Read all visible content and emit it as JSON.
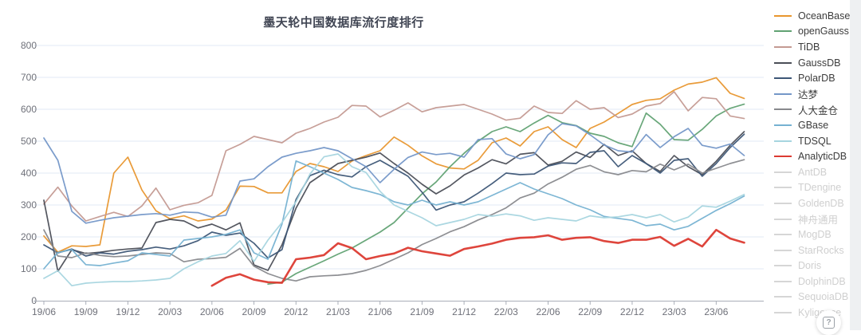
{
  "title": "墨天轮中国数据库流行度排行",
  "help_button": {
    "label": "?"
  },
  "colors": {
    "grid": "#E2EAF4",
    "axis": "#A9AEB8",
    "tick_label": "#6E7079",
    "inactive_legend": "#D6D6D6"
  },
  "chart_data": {
    "type": "line",
    "title": "墨天轮中国数据库流行度排行",
    "ylim": [
      0,
      800
    ],
    "y_ticks": [
      0,
      100,
      200,
      300,
      400,
      500,
      600,
      700,
      800
    ],
    "x_tick_labels": [
      "19/06",
      "19/09",
      "19/12",
      "20/03",
      "20/06",
      "20/09",
      "20/12",
      "21/03",
      "21/06",
      "21/09",
      "21/12",
      "22/03",
      "22/06",
      "22/09",
      "22/12",
      "23/03",
      "23/06"
    ],
    "x_tick_interval": 3,
    "x_start_month": "2019/06",
    "x_end_month": "2023/08",
    "grid": true,
    "legend_position": "right",
    "series": [
      {
        "name": "OceanBase",
        "color": "#E8962E",
        "width": 1.7,
        "values": [
          203,
          152,
          172,
          170,
          175,
          400,
          450,
          347,
          282,
          257,
          266,
          250,
          256,
          284,
          359,
          358,
          338,
          338,
          405,
          430,
          420,
          405,
          438,
          455,
          470,
          513,
          487,
          454,
          429,
          416,
          413,
          440,
          495,
          510,
          485,
          530,
          545,
          505,
          480,
          540,
          560,
          587,
          615,
          628,
          633,
          660,
          679,
          685,
          699,
          650,
          634
        ]
      },
      {
        "name": "openGauss",
        "color": "#61A273",
        "width": 1.7,
        "values": [
          null,
          null,
          null,
          null,
          null,
          null,
          null,
          null,
          null,
          null,
          null,
          null,
          null,
          null,
          null,
          null,
          52,
          58,
          85,
          105,
          125,
          146,
          165,
          190,
          215,
          245,
          290,
          335,
          372,
          420,
          462,
          500,
          530,
          545,
          530,
          557,
          581,
          558,
          549,
          525,
          515,
          495,
          483,
          588,
          553,
          505,
          503,
          537,
          579,
          603,
          616
        ]
      },
      {
        "name": "TiDB",
        "color": "#C49A92",
        "width": 1.7,
        "values": [
          303,
          356,
          297,
          250,
          264,
          277,
          264,
          297,
          353,
          285,
          299,
          307,
          330,
          470,
          490,
          515,
          505,
          495,
          525,
          540,
          560,
          575,
          612,
          610,
          576,
          597,
          620,
          592,
          605,
          610,
          615,
          600,
          585,
          566,
          572,
          610,
          590,
          587,
          627,
          600,
          605,
          574,
          585,
          610,
          618,
          655,
          595,
          637,
          633,
          579,
          571
        ]
      },
      {
        "name": "GaussDB",
        "color": "#4B4E57",
        "width": 1.7,
        "values": [
          315,
          92,
          160,
          148,
          152,
          158,
          162,
          165,
          245,
          255,
          250,
          228,
          240,
          222,
          244,
          112,
          95,
          175,
          290,
          370,
          400,
          430,
          440,
          450,
          463,
          430,
          400,
          365,
          335,
          360,
          394,
          416,
          442,
          429,
          459,
          464,
          425,
          437,
          466,
          449,
          490,
          455,
          470,
          430,
          405,
          455,
          420,
          395,
          437,
          487,
          530
        ]
      },
      {
        "name": "PolarDB",
        "color": "#3D5676",
        "width": 1.7,
        "values": [
          175,
          150,
          162,
          140,
          150,
          146,
          155,
          160,
          168,
          162,
          172,
          188,
          215,
          205,
          212,
          180,
          134,
          160,
          317,
          392,
          409,
          395,
          388,
          420,
          440,
          415,
          390,
          340,
          284,
          300,
          310,
          337,
          367,
          400,
          395,
          397,
          422,
          432,
          430,
          465,
          470,
          420,
          455,
          430,
          400,
          440,
          445,
          390,
          430,
          480,
          522
        ]
      },
      {
        "name": "达梦",
        "color": "#7497C8",
        "width": 1.7,
        "values": [
          510,
          440,
          280,
          243,
          252,
          260,
          265,
          270,
          273,
          268,
          278,
          276,
          262,
          268,
          375,
          382,
          420,
          450,
          462,
          470,
          480,
          470,
          445,
          420,
          370,
          412,
          449,
          466,
          458,
          462,
          450,
          505,
          508,
          460,
          445,
          458,
          520,
          555,
          548,
          520,
          488,
          470,
          466,
          521,
          480,
          514,
          540,
          487,
          478,
          491,
          455
        ]
      },
      {
        "name": "人大金仓",
        "color": "#88898D",
        "width": 1.7,
        "values": [
          222,
          140,
          135,
          150,
          142,
          138,
          140,
          145,
          150,
          148,
          122,
          130,
          132,
          136,
          164,
          108,
          85,
          70,
          62,
          75,
          78,
          80,
          85,
          95,
          110,
          130,
          150,
          176,
          195,
          216,
          232,
          253,
          270,
          291,
          322,
          337,
          366,
          387,
          412,
          424,
          404,
          395,
          408,
          404,
          428,
          410,
          428,
          400,
          415,
          430,
          442
        ]
      },
      {
        "name": "GBase",
        "color": "#76B2D2",
        "width": 1.7,
        "values": [
          100,
          151,
          160,
          113,
          110,
          118,
          125,
          150,
          145,
          140,
          190,
          195,
          200,
          208,
          222,
          150,
          130,
          240,
          438,
          420,
          400,
          380,
          355,
          345,
          333,
          310,
          300,
          315,
          300,
          310,
          300,
          310,
          330,
          350,
          370,
          350,
          335,
          320,
          300,
          285,
          264,
          258,
          252,
          235,
          240,
          222,
          233,
          258,
          283,
          304,
          328
        ]
      },
      {
        "name": "TDSQL",
        "color": "#A6D5DF",
        "width": 1.7,
        "values": [
          70,
          94,
          47,
          55,
          58,
          60,
          60,
          62,
          65,
          70,
          100,
          122,
          140,
          148,
          188,
          123,
          190,
          245,
          310,
          397,
          451,
          460,
          420,
          402,
          343,
          300,
          280,
          260,
          235,
          245,
          255,
          270,
          265,
          272,
          266,
          252,
          260,
          255,
          250,
          266,
          260,
          263,
          270,
          260,
          270,
          247,
          262,
          297,
          293,
          312,
          333
        ]
      },
      {
        "name": "AnalyticDB",
        "color": "#DC3B32",
        "width": 2.6,
        "values": [
          null,
          null,
          null,
          null,
          null,
          null,
          null,
          null,
          null,
          null,
          null,
          null,
          47,
          72,
          83,
          66,
          58,
          56,
          130,
          135,
          143,
          180,
          165,
          130,
          140,
          148,
          166,
          155,
          148,
          141,
          162,
          170,
          179,
          191,
          197,
          199,
          205,
          191,
          197,
          199,
          187,
          181,
          191,
          191,
          200,
          172,
          194,
          170,
          222,
          195,
          182
        ]
      }
    ],
    "inactive_series": [
      "AntDB",
      "TDengine",
      "GoldenDB",
      "神舟通用",
      "MogDB",
      "StarRocks",
      "Doris",
      "DolphinDB",
      "SequoiaDB",
      "Kyligence"
    ]
  }
}
